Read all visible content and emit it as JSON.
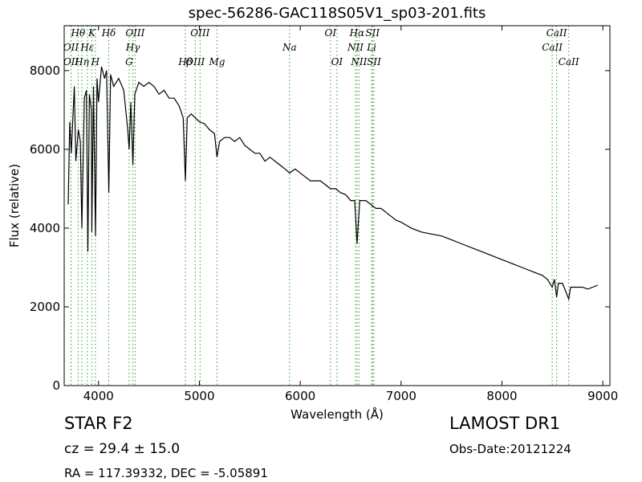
{
  "chart_data": {
    "type": "line",
    "title": "spec-56286-GAC118S05V1_sp03-201.fits",
    "x_label": "Wavelength (Å)",
    "y_label": "Flux (relative)",
    "xlim": [
      3660,
      9070
    ],
    "ylim": [
      0,
      9140
    ],
    "xticks": [
      4000,
      5000,
      6000,
      7000,
      8000,
      9000
    ],
    "yticks": [
      0,
      2000,
      4000,
      6000,
      8000
    ],
    "series": [
      {
        "name": "flux",
        "color": "#000000",
        "x": [
          3700,
          3715,
          3730,
          3760,
          3775,
          3800,
          3820,
          3835,
          3860,
          3880,
          3895,
          3910,
          3930,
          3934,
          3950,
          3970,
          3985,
          4000,
          4030,
          4060,
          4080,
          4102,
          4120,
          4150,
          4200,
          4250,
          4290,
          4304,
          4320,
          4341,
          4360,
          4400,
          4450,
          4500,
          4550,
          4600,
          4650,
          4700,
          4750,
          4800,
          4840,
          4861,
          4880,
          4920,
          4960,
          5000,
          5050,
          5100,
          5150,
          5175,
          5200,
          5250,
          5300,
          5350,
          5400,
          5450,
          5500,
          5550,
          5600,
          5650,
          5700,
          5750,
          5800,
          5850,
          5894,
          5950,
          6000,
          6050,
          6100,
          6150,
          6200,
          6250,
          6300,
          6350,
          6400,
          6450,
          6500,
          6540,
          6563,
          6590,
          6650,
          6700,
          6750,
          6800,
          6850,
          6900,
          6950,
          7000,
          7100,
          7200,
          7300,
          7400,
          7500,
          7600,
          7700,
          7800,
          7900,
          8000,
          8100,
          8200,
          8300,
          8400,
          8450,
          8498,
          8520,
          8542,
          8560,
          8600,
          8662,
          8680,
          8750,
          8800,
          8850,
          8900,
          8950
        ],
        "values": [
          4600,
          6700,
          5900,
          7600,
          5700,
          6500,
          6200,
          4000,
          7300,
          7500,
          3400,
          7400,
          7000,
          3900,
          7600,
          3800,
          7800,
          7200,
          8100,
          7800,
          8000,
          4900,
          7900,
          7600,
          7800,
          7500,
          6500,
          6000,
          7200,
          5600,
          7400,
          7700,
          7600,
          7700,
          7600,
          7400,
          7500,
          7300,
          7300,
          7100,
          6800,
          5200,
          6800,
          6900,
          6800,
          6700,
          6650,
          6500,
          6400,
          5800,
          6200,
          6300,
          6300,
          6200,
          6300,
          6100,
          6000,
          5900,
          5900,
          5700,
          5800,
          5700,
          5600,
          5500,
          5400,
          5500,
          5400,
          5300,
          5200,
          5200,
          5200,
          5100,
          5000,
          5000,
          4900,
          4850,
          4700,
          4700,
          3600,
          4700,
          4700,
          4600,
          4500,
          4500,
          4400,
          4300,
          4200,
          4150,
          4000,
          3900,
          3850,
          3800,
          3700,
          3600,
          3500,
          3400,
          3300,
          3200,
          3100,
          3000,
          2900,
          2800,
          2700,
          2500,
          2700,
          2250,
          2600,
          2600,
          2200,
          2500,
          2500,
          2500,
          2450,
          2500,
          2550
        ]
      }
    ],
    "reference_lines": {
      "color": "#2ca02c",
      "x": [
        3727,
        3728,
        3798,
        3835,
        3889,
        3934,
        3969,
        4102,
        4304,
        4341,
        4363,
        4861,
        4959,
        5007,
        5175,
        5894,
        6300,
        6364,
        6548,
        6563,
        6583,
        6708,
        6717,
        6731,
        8498,
        8542,
        8662
      ],
      "labels": [
        "OII",
        "OII",
        "Hθ",
        "Hη",
        "Hε",
        "K",
        "H",
        "Hδ",
        "G",
        "Hγ",
        "OIII",
        "Hβ",
        "OIII",
        "OIII",
        "Mg",
        "Na",
        "OI",
        "OI",
        "NII",
        "Hα",
        "NII",
        "Li",
        "SII",
        "SII",
        "CaII",
        "CaII",
        "CaII"
      ]
    },
    "annotations": [
      "STAR   F2",
      "LAMOST DR1",
      "cz = 29.4 ± 15.0",
      "Obs-Date:20121224",
      "RA = 117.39332, DEC = -5.05891"
    ]
  }
}
